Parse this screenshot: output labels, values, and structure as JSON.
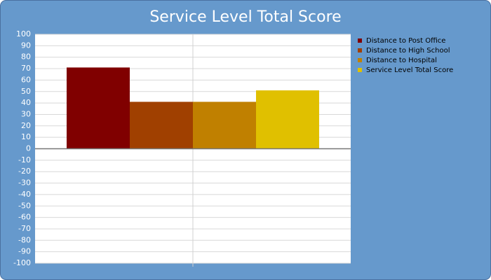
{
  "chart_data": {
    "type": "bar",
    "title": "Service Level Total Score",
    "categories": [
      null
    ],
    "series": [
      {
        "name": "Distance to Post Office",
        "color": "#800000",
        "values": [
          71
        ]
      },
      {
        "name": "Distance to High School",
        "color": "#a04000",
        "values": [
          41
        ]
      },
      {
        "name": "Distance to Hospital",
        "color": "#c08000",
        "values": [
          41
        ]
      },
      {
        "name": "Service Level Total Score",
        "color": "#e0c000",
        "values": [
          51
        ]
      }
    ],
    "ylim": [
      -100,
      100
    ],
    "yticks": [
      -100,
      -90,
      -80,
      -70,
      -60,
      -50,
      -40,
      -30,
      -20,
      -10,
      0,
      10,
      20,
      30,
      40,
      50,
      60,
      70,
      80,
      90,
      100
    ],
    "grid": true,
    "legend": "right"
  }
}
